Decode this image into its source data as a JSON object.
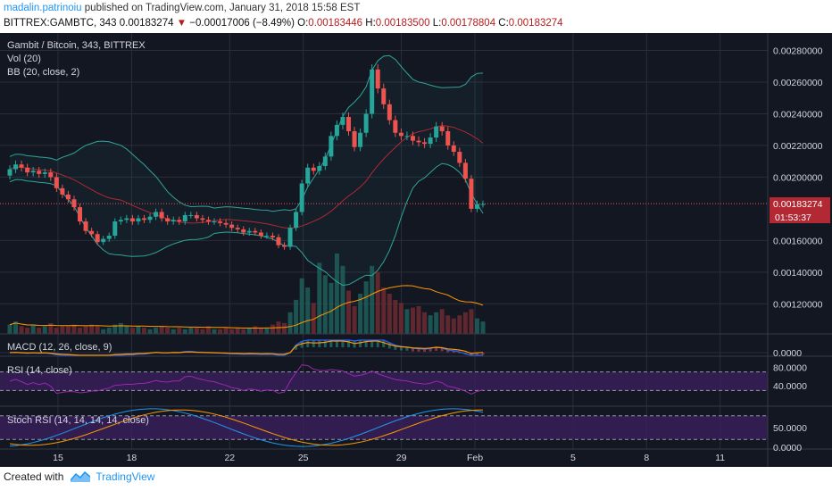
{
  "header": {
    "user": "madalin.patrinoiu",
    "published_text": " published on TradingView.com, January 31, 2018 15:58 EST",
    "symbol": "BITTREX:GAMBTC, 343",
    "last": "0.00183274",
    "arrow": "▼",
    "change": "−0.00017006 (−8.49%)",
    "open_label": "O:",
    "open": "0.00183446",
    "high_label": "H:",
    "high": "0.00183500",
    "low_label": "L:",
    "low": "0.00178804",
    "close_label": "C:",
    "close": "0.00183274"
  },
  "legend": {
    "title": "Gambit / Bitcoin, 343, BITTREX",
    "vol": "Vol (20)",
    "bb": "BB (20, close, 2)",
    "macd": "MACD (12, 26, close, 9)",
    "rsi": "RSI (14, close)",
    "stoch": "Stoch RSI (14, 14, 14, 14, close)"
  },
  "price_label": "0.00183274",
  "countdown": "01:53:37",
  "footer": {
    "created_with": "Created with",
    "brand": "TradingView"
  },
  "colors": {
    "background": "#131722",
    "up": "#26a69a",
    "down": "#ef5350",
    "bb_basis": "#b22833",
    "bb_band": "#2fa59a",
    "macd_line": "#2962ff",
    "signal_line": "#ff9800",
    "rsi_line": "#9c27b0",
    "stoch_k": "#2196f3",
    "stoch_d": "#ff9800",
    "osc_bg": "#3a1f5c"
  },
  "chart_data": {
    "type": "candlestick",
    "title": "Gambit / Bitcoin, 343, BITTREX",
    "x_tick_labels": [
      "15",
      "18",
      "22",
      "25",
      "29",
      "Feb",
      "5",
      "8",
      "11"
    ],
    "y_tick_labels": [
      "0.00280000",
      "0.00260000",
      "0.00240000",
      "0.00220000",
      "0.00200000",
      "0.00160000",
      "0.00140000",
      "0.00120000"
    ],
    "y_ticks": [
      0.0028,
      0.0026,
      0.0024,
      0.0022,
      0.002,
      0.0016,
      0.0014,
      0.0012
    ],
    "ylim": [
      0.00101,
      0.00291
    ],
    "last_price": 0.00183274,
    "closes": [
      0.00205,
      0.00208,
      0.00206,
      0.00203,
      0.00204,
      0.00202,
      0.00203,
      0.002,
      0.00193,
      0.00189,
      0.00186,
      0.00181,
      0.00172,
      0.00166,
      0.00164,
      0.00159,
      0.00161,
      0.00163,
      0.00172,
      0.00173,
      0.00174,
      0.00172,
      0.00174,
      0.00173,
      0.00175,
      0.00178,
      0.00174,
      0.00172,
      0.00173,
      0.00172,
      0.00176,
      0.00176,
      0.00174,
      0.00173,
      0.00172,
      0.00172,
      0.00171,
      0.0017,
      0.00168,
      0.00167,
      0.00165,
      0.00166,
      0.00165,
      0.00163,
      0.00163,
      0.00162,
      0.00157,
      0.00156,
      0.00168,
      0.00178,
      0.00196,
      0.00206,
      0.00204,
      0.00207,
      0.00213,
      0.00226,
      0.00233,
      0.00238,
      0.00229,
      0.00219,
      0.00228,
      0.0024,
      0.00268,
      0.00256,
      0.00246,
      0.00236,
      0.00228,
      0.00226,
      0.00226,
      0.00223,
      0.00222,
      0.00221,
      0.00225,
      0.00232,
      0.00229,
      0.0022,
      0.00216,
      0.00209,
      0.00199,
      0.0018,
      0.00183,
      0.00183
    ],
    "opens": [
      0.00201,
      0.00205,
      0.00208,
      0.00206,
      0.00203,
      0.00204,
      0.00202,
      0.00203,
      0.002,
      0.00193,
      0.00189,
      0.00186,
      0.00181,
      0.00172,
      0.00166,
      0.00164,
      0.00159,
      0.00161,
      0.00163,
      0.00172,
      0.00173,
      0.00174,
      0.00172,
      0.00174,
      0.00173,
      0.00175,
      0.00178,
      0.00174,
      0.00172,
      0.00173,
      0.00172,
      0.00176,
      0.00176,
      0.00174,
      0.00173,
      0.00172,
      0.00172,
      0.00171,
      0.0017,
      0.00168,
      0.00167,
      0.00165,
      0.00166,
      0.00165,
      0.00163,
      0.00163,
      0.00162,
      0.00157,
      0.00156,
      0.00168,
      0.00178,
      0.00196,
      0.00206,
      0.00204,
      0.00207,
      0.00213,
      0.00226,
      0.00233,
      0.00238,
      0.00229,
      0.00219,
      0.00228,
      0.0024,
      0.00268,
      0.00256,
      0.00246,
      0.00236,
      0.00228,
      0.00226,
      0.00226,
      0.00223,
      0.00222,
      0.00221,
      0.00225,
      0.00232,
      0.00229,
      0.0022,
      0.00216,
      0.00209,
      0.00199,
      0.0018,
      0.00183
    ],
    "volumes": [
      6,
      8,
      5,
      4,
      6,
      4,
      5,
      7,
      4,
      5,
      5,
      6,
      4,
      5,
      6,
      5,
      3,
      4,
      6,
      7,
      5,
      4,
      5,
      4,
      3,
      4,
      5,
      4,
      3,
      4,
      3,
      4,
      4,
      3,
      5,
      3,
      3,
      4,
      3,
      4,
      3,
      4,
      5,
      4,
      4,
      6,
      8,
      7,
      14,
      22,
      36,
      30,
      20,
      46,
      38,
      33,
      52,
      44,
      28,
      18,
      26,
      34,
      44,
      40,
      30,
      26,
      22,
      20,
      16,
      17,
      18,
      14,
      12,
      14,
      16,
      12,
      10,
      12,
      14,
      16,
      10,
      8
    ],
    "panels": {
      "macd": {
        "y_tick_labels": [
          "0.0000"
        ]
      },
      "rsi": {
        "y_tick_labels": [
          "80.0000",
          "40.0000"
        ],
        "ylim": [
          0,
          100
        ]
      },
      "stoch_rsi": {
        "y_tick_labels": [
          "50.0000",
          "0.0000"
        ],
        "ylim": [
          0,
          100
        ]
      }
    }
  }
}
